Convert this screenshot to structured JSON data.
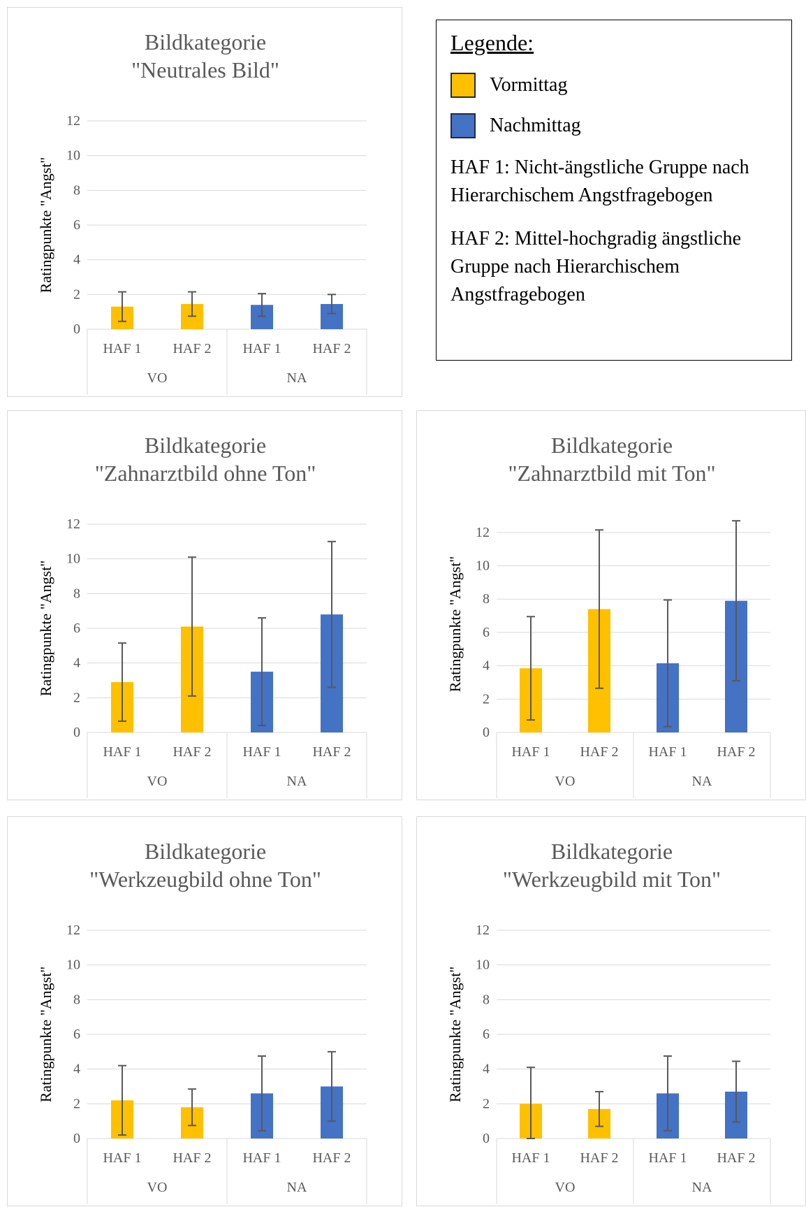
{
  "colors": {
    "vormittag": "#FFC000",
    "nachmittag": "#4472C4",
    "error_bar": "#595959",
    "grid": "#d9d9d9",
    "axis_text": "#595959",
    "title_text": "#595959"
  },
  "legend": {
    "title": "Legende:",
    "items": [
      {
        "label": "Vormittag",
        "color": "#FFC000"
      },
      {
        "label": "Nachmittag",
        "color": "#4472C4"
      }
    ],
    "note_haf1": "HAF 1: Nicht-ängstliche Gruppe nach Hierarchischem Angstfragebogen",
    "note_haf2": "HAF 2: Mittel-hochgradig ängstliche Gruppe nach Hierarchischem Angstfragebogen"
  },
  "chart_data": [
    {
      "type": "bar",
      "title_line1": "Bildkategorie",
      "title_line2": "\"Neutrales Bild\"",
      "ylabel": "Ratingpunkte \"Angst\"",
      "ylim": [
        0,
        12
      ],
      "yticks": [
        0,
        2,
        4,
        6,
        8,
        10,
        12
      ],
      "categories": [
        "HAF 1",
        "HAF 2",
        "HAF 1",
        "HAF 2"
      ],
      "groups": [
        "VO",
        "NA"
      ],
      "values": [
        1.3,
        1.45,
        1.4,
        1.45
      ],
      "errors": [
        0.85,
        0.7,
        0.65,
        0.55
      ],
      "bar_colors": [
        "#FFC000",
        "#FFC000",
        "#4472C4",
        "#4472C4"
      ]
    },
    {
      "type": "bar",
      "title_line1": "Bildkategorie",
      "title_line2": "\"Zahnarztbild ohne Ton\"",
      "ylabel": "Ratingpunkte \"Angst\"",
      "ylim": [
        0,
        12
      ],
      "yticks": [
        0,
        2,
        4,
        6,
        8,
        10,
        12
      ],
      "categories": [
        "HAF 1",
        "HAF 2",
        "HAF 1",
        "HAF 2"
      ],
      "groups": [
        "VO",
        "NA"
      ],
      "values": [
        2.9,
        6.1,
        3.5,
        6.8
      ],
      "errors": [
        2.25,
        4.0,
        3.1,
        4.2
      ],
      "bar_colors": [
        "#FFC000",
        "#FFC000",
        "#4472C4",
        "#4472C4"
      ]
    },
    {
      "type": "bar",
      "title_line1": "Bildkategorie",
      "title_line2": "\"Zahnarztbild mit Ton\"",
      "ylabel": "Ratingpunkte \"Angst\"",
      "ylim": [
        0,
        13
      ],
      "yticks": [
        0,
        2,
        4,
        6,
        8,
        10,
        12
      ],
      "categories": [
        "HAF 1",
        "HAF 2",
        "HAF 1",
        "HAF 2"
      ],
      "groups": [
        "VO",
        "NA"
      ],
      "values": [
        3.85,
        7.4,
        4.15,
        7.9
      ],
      "errors": [
        3.1,
        4.75,
        3.8,
        4.8
      ],
      "bar_colors": [
        "#FFC000",
        "#FFC000",
        "#4472C4",
        "#4472C4"
      ]
    },
    {
      "type": "bar",
      "title_line1": "Bildkategorie",
      "title_line2": "\"Werkzeugbild ohne Ton\"",
      "ylabel": "Ratingpunkte \"Angst\"",
      "ylim": [
        0,
        12
      ],
      "yticks": [
        0,
        2,
        4,
        6,
        8,
        10,
        12
      ],
      "categories": [
        "HAF 1",
        "HAF 2",
        "HAF 1",
        "HAF 2"
      ],
      "groups": [
        "VO",
        "NA"
      ],
      "values": [
        2.2,
        1.8,
        2.6,
        3.0
      ],
      "errors": [
        2.0,
        1.05,
        2.15,
        2.0
      ],
      "bar_colors": [
        "#FFC000",
        "#FFC000",
        "#4472C4",
        "#4472C4"
      ]
    },
    {
      "type": "bar",
      "title_line1": "Bildkategorie",
      "title_line2": "\"Werkzeugbild mit Ton\"",
      "ylabel": "Ratingpunkte \"Angst\"",
      "ylim": [
        0,
        12
      ],
      "yticks": [
        0,
        2,
        4,
        6,
        8,
        10,
        12
      ],
      "categories": [
        "HAF 1",
        "HAF 2",
        "HAF 1",
        "HAF 2"
      ],
      "groups": [
        "VO",
        "NA"
      ],
      "values": [
        2.0,
        1.7,
        2.6,
        2.7
      ],
      "errors": [
        2.1,
        1.0,
        2.15,
        1.75
      ],
      "bar_colors": [
        "#FFC000",
        "#FFC000",
        "#4472C4",
        "#4472C4"
      ]
    }
  ]
}
